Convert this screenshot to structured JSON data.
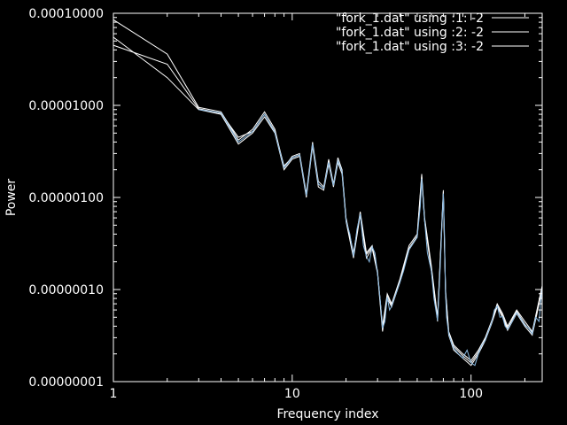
{
  "chart_data": {
    "type": "line",
    "title": "",
    "xlabel": "Frequency index",
    "ylabel": "Power",
    "x_scale": "log",
    "y_scale": "log",
    "xlim": [
      1,
      250
    ],
    "ylim": [
      1e-08,
      0.0001
    ],
    "x_tick_labels": [
      "1",
      "10",
      "100"
    ],
    "x_tick_values": [
      1,
      10,
      100
    ],
    "y_tick_labels": [
      "0.00000001",
      "0.00000010",
      "0.00000100",
      "0.00001000",
      "0.00010000"
    ],
    "y_tick_values": [
      1e-08,
      1e-07,
      1e-06,
      1e-05,
      0.0001
    ],
    "grid": false,
    "legend_position": "top-right",
    "colors": {
      "background": "#000000",
      "foreground": "#ffffff",
      "highlight": "#88b8e0"
    },
    "series": [
      {
        "name": "\"fork_1.dat\" using :1: -2",
        "color": "#ffffff",
        "x": [
          1,
          2,
          3,
          4,
          5,
          6,
          7,
          8,
          9,
          10,
          11,
          12,
          13,
          14,
          15,
          16,
          17,
          18,
          19,
          20,
          22,
          24,
          26,
          28,
          30,
          32,
          34,
          36,
          40,
          45,
          50,
          53,
          55,
          60,
          65,
          70,
          72,
          75,
          80,
          90,
          100,
          110,
          120,
          130,
          140,
          150,
          160,
          180,
          200,
          220,
          250
        ],
        "y": [
          8.5e-05,
          3.6e-05,
          9.5e-06,
          8.5e-06,
          4.2e-06,
          5.5e-06,
          8.5e-06,
          5.5e-06,
          2.1e-06,
          2.8e-06,
          3e-06,
          1.1e-06,
          4e-06,
          1.5e-06,
          1.3e-06,
          2.6e-06,
          1.4e-06,
          2.7e-06,
          2e-06,
          6e-07,
          2.5e-07,
          7e-07,
          2.5e-07,
          3e-07,
          1.6e-07,
          4e-08,
          9e-08,
          7e-08,
          1.3e-07,
          3e-07,
          4e-07,
          1.8e-06,
          6e-07,
          1.8e-07,
          5e-08,
          1.2e-06,
          1e-07,
          3.5e-08,
          2.5e-08,
          2e-08,
          1.7e-08,
          2.2e-08,
          3e-08,
          4.5e-08,
          7e-08,
          5.5e-08,
          4e-08,
          6e-08,
          4.5e-08,
          3.5e-08,
          1.1e-07
        ]
      },
      {
        "name": "\"fork_1.dat\" using :2: -2",
        "color": "#ffffff",
        "x": [
          1,
          2,
          3,
          4,
          5,
          6,
          7,
          8,
          9,
          10,
          11,
          12,
          13,
          14,
          15,
          16,
          17,
          18,
          19,
          20,
          22,
          24,
          26,
          28,
          30,
          32,
          34,
          36,
          40,
          45,
          50,
          53,
          55,
          60,
          65,
          70,
          72,
          75,
          80,
          90,
          100,
          110,
          120,
          130,
          140,
          150,
          160,
          180,
          200,
          220,
          250
        ],
        "y": [
          5.5e-05,
          2e-05,
          9e-06,
          8e-06,
          3.8e-06,
          5e-06,
          7.5e-06,
          5e-06,
          2e-06,
          2.6e-06,
          2.8e-06,
          1e-06,
          3.6e-06,
          1.3e-06,
          1.2e-06,
          2.3e-06,
          1.3e-06,
          2.4e-06,
          1.8e-06,
          5.5e-07,
          2.2e-07,
          6.5e-07,
          2.2e-07,
          2.8e-07,
          1.5e-07,
          3.5e-08,
          8e-08,
          6.5e-08,
          1.2e-07,
          2.7e-07,
          3.7e-07,
          1.6e-06,
          5.5e-07,
          1.6e-07,
          4.5e-08,
          1.1e-06,
          9e-08,
          3.2e-08,
          2.2e-08,
          1.8e-08,
          1.5e-08,
          2e-08,
          2.8e-08,
          4.2e-08,
          6.5e-08,
          5e-08,
          3.6e-08,
          5.5e-08,
          4e-08,
          3.2e-08,
          1e-07
        ]
      },
      {
        "name": "\"fork_1.dat\" using :3: -2",
        "color": "#ffffff",
        "x": [
          1,
          2,
          3,
          4,
          5,
          6,
          7,
          8,
          9,
          10,
          11,
          12,
          13,
          14,
          15,
          16,
          17,
          18,
          19,
          20,
          22,
          24,
          26,
          28,
          30,
          32,
          34,
          36,
          40,
          45,
          50,
          53,
          55,
          60,
          65,
          70,
          72,
          75,
          80,
          90,
          100,
          110,
          120,
          130,
          140,
          150,
          160,
          180,
          200,
          220,
          250
        ],
        "y": [
          4.5e-05,
          2.8e-05,
          9.2e-06,
          8.2e-06,
          4.5e-06,
          5.2e-06,
          8e-06,
          5.2e-06,
          2.2e-06,
          2.7e-06,
          2.9e-06,
          1.05e-06,
          3.8e-06,
          1.4e-06,
          1.25e-06,
          2.5e-06,
          1.35e-06,
          2.5e-06,
          1.9e-06,
          5.8e-07,
          2.4e-07,
          6.8e-07,
          2.4e-07,
          2.9e-07,
          1.55e-07,
          3.8e-08,
          8.5e-08,
          6.8e-08,
          1.25e-07,
          2.8e-07,
          3.8e-07,
          1.7e-06,
          5.8e-07,
          1.7e-07,
          4.8e-08,
          1.15e-06,
          9.5e-08,
          3.4e-08,
          2.4e-08,
          1.9e-08,
          1.6e-08,
          2.1e-08,
          2.9e-08,
          4.3e-08,
          6.8e-08,
          5.2e-08,
          3.8e-08,
          5.8e-08,
          4.2e-08,
          3.4e-08,
          1.05e-07
        ]
      },
      {
        "name": "",
        "color": "#88b8e0",
        "x": [
          3,
          4,
          5,
          6,
          7,
          8,
          9,
          10,
          11,
          12,
          13,
          14,
          15,
          16,
          17,
          18,
          19,
          20,
          21,
          22,
          23,
          24,
          25,
          26,
          27,
          28,
          29,
          30,
          31,
          32,
          33,
          34,
          35,
          36,
          38,
          40,
          42,
          45,
          48,
          50,
          52,
          53,
          54,
          55,
          57,
          60,
          62,
          65,
          67,
          70,
          71,
          72,
          73,
          75,
          78,
          80,
          85,
          90,
          95,
          100,
          105,
          110,
          115,
          120,
          125,
          130,
          135,
          140,
          145,
          150,
          155,
          160,
          170,
          180,
          190,
          200,
          210,
          220,
          230,
          240,
          250
        ],
        "y": [
          9e-06,
          8.3e-06,
          4e-06,
          5.2e-06,
          8e-06,
          5.1e-06,
          2.1e-06,
          2.7e-06,
          2.9e-06,
          1.05e-06,
          3.8e-06,
          1.4e-06,
          1.25e-06,
          2.4e-06,
          1.35e-06,
          2.5e-06,
          1.9e-06,
          5.6e-07,
          4e-07,
          2.3e-07,
          4.5e-07,
          6.6e-07,
          3e-07,
          2.3e-07,
          2e-07,
          2.9e-07,
          2.5e-07,
          1.5e-07,
          8e-08,
          3.8e-08,
          4.5e-08,
          8.3e-08,
          6e-08,
          6.6e-08,
          9e-08,
          1.2e-07,
          1.6e-07,
          2.7e-07,
          3.3e-07,
          3.7e-07,
          8e-07,
          1.6e-06,
          9e-07,
          5.6e-07,
          2.5e-07,
          1.6e-07,
          8e-08,
          4.6e-08,
          1.5e-07,
          1.1e-06,
          4e-07,
          9.2e-08,
          5e-08,
          3.3e-08,
          2.6e-08,
          2.3e-08,
          2e-08,
          1.8e-08,
          2.2e-08,
          1.6e-08,
          1.5e-08,
          2e-08,
          2.5e-08,
          2.8e-08,
          3.5e-08,
          4.3e-08,
          6e-08,
          6.6e-08,
          5e-08,
          5.1e-08,
          4e-08,
          3.7e-08,
          4.5e-08,
          5.6e-08,
          4.8e-08,
          4.1e-08,
          3.8e-08,
          3.3e-08,
          5e-08,
          4.5e-08,
          1.05e-07
        ]
      }
    ]
  }
}
